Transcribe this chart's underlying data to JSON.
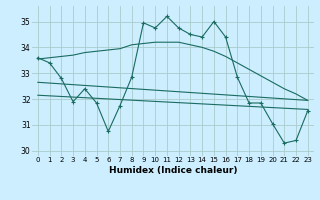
{
  "xlabel": "Humidex (Indice chaleur)",
  "background_color": "#cceeff",
  "grid_color": "#aacccc",
  "line_color": "#1a6b60",
  "xlim": [
    -0.5,
    23.5
  ],
  "ylim": [
    29.8,
    35.6
  ],
  "yticks": [
    30,
    31,
    32,
    33,
    34,
    35
  ],
  "xticks": [
    0,
    1,
    2,
    3,
    4,
    5,
    6,
    7,
    8,
    9,
    10,
    11,
    12,
    13,
    14,
    15,
    16,
    17,
    18,
    19,
    20,
    21,
    22,
    23
  ],
  "line1_x": [
    0,
    1,
    2,
    3,
    4,
    5,
    6,
    7,
    8,
    9,
    10,
    11,
    12,
    13,
    14,
    15,
    16,
    17,
    18,
    19,
    20,
    21,
    22,
    23
  ],
  "line1_y": [
    33.6,
    33.4,
    32.8,
    31.9,
    32.4,
    31.85,
    30.75,
    31.75,
    32.85,
    34.95,
    34.75,
    35.2,
    34.75,
    34.5,
    34.4,
    35.0,
    34.4,
    32.85,
    31.85,
    31.85,
    31.05,
    30.3,
    30.4,
    31.55
  ],
  "line2_x": [
    0,
    1,
    2,
    3,
    4,
    5,
    6,
    7,
    8,
    9,
    10,
    11,
    12,
    13,
    14,
    15,
    16,
    17,
    18,
    19,
    20,
    21,
    22,
    23
  ],
  "line2_y": [
    33.55,
    33.6,
    33.65,
    33.7,
    33.8,
    33.85,
    33.9,
    33.95,
    34.1,
    34.15,
    34.2,
    34.2,
    34.2,
    34.1,
    34.0,
    33.85,
    33.65,
    33.4,
    33.15,
    32.9,
    32.65,
    32.4,
    32.2,
    31.95
  ],
  "line3_x": [
    0,
    23
  ],
  "line3_y": [
    32.65,
    31.95
  ],
  "line4_x": [
    0,
    23
  ],
  "line4_y": [
    32.15,
    31.6
  ]
}
